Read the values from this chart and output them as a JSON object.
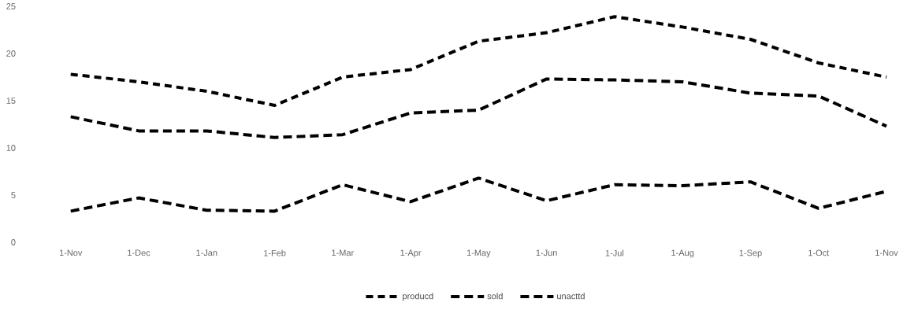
{
  "chart_data": {
    "type": "line",
    "categories": [
      "1-Nov",
      "1-Dec",
      "1-Jan",
      "1-Feb",
      "1-Mar",
      "1-Apr",
      "1-May",
      "1-Jun",
      "1-Jul",
      "1-Aug",
      "1-Sep",
      "1-Oct",
      "1-Nov"
    ],
    "series": [
      {
        "name": "producd",
        "color": "#000000",
        "line_style": "dotted",
        "values": [
          17.8,
          17,
          16,
          14.5,
          17.5,
          18.3,
          21.3,
          22.2,
          23.9,
          22.8,
          21.5,
          19,
          17.5
        ]
      },
      {
        "name": "sold",
        "color": "#000000",
        "line_style": "dashed",
        "values": [
          13.3,
          11.8,
          11.8,
          11.1,
          11.4,
          13.7,
          14,
          17.3,
          17.2,
          17,
          15.8,
          15.5,
          12.3
        ]
      },
      {
        "name": "unacttd",
        "color": "#000000",
        "line_style": "dashed",
        "values": [
          3.3,
          4.7,
          3.4,
          3.3,
          6.1,
          4.3,
          6.8,
          4.4,
          6.1,
          6,
          6.4,
          3.6,
          5.4
        ]
      }
    ],
    "ylim": [
      0,
      25
    ],
    "yticks": [
      0,
      5,
      10,
      15,
      20,
      25
    ],
    "grid": false,
    "legend": "bottom",
    "marker": "none"
  }
}
